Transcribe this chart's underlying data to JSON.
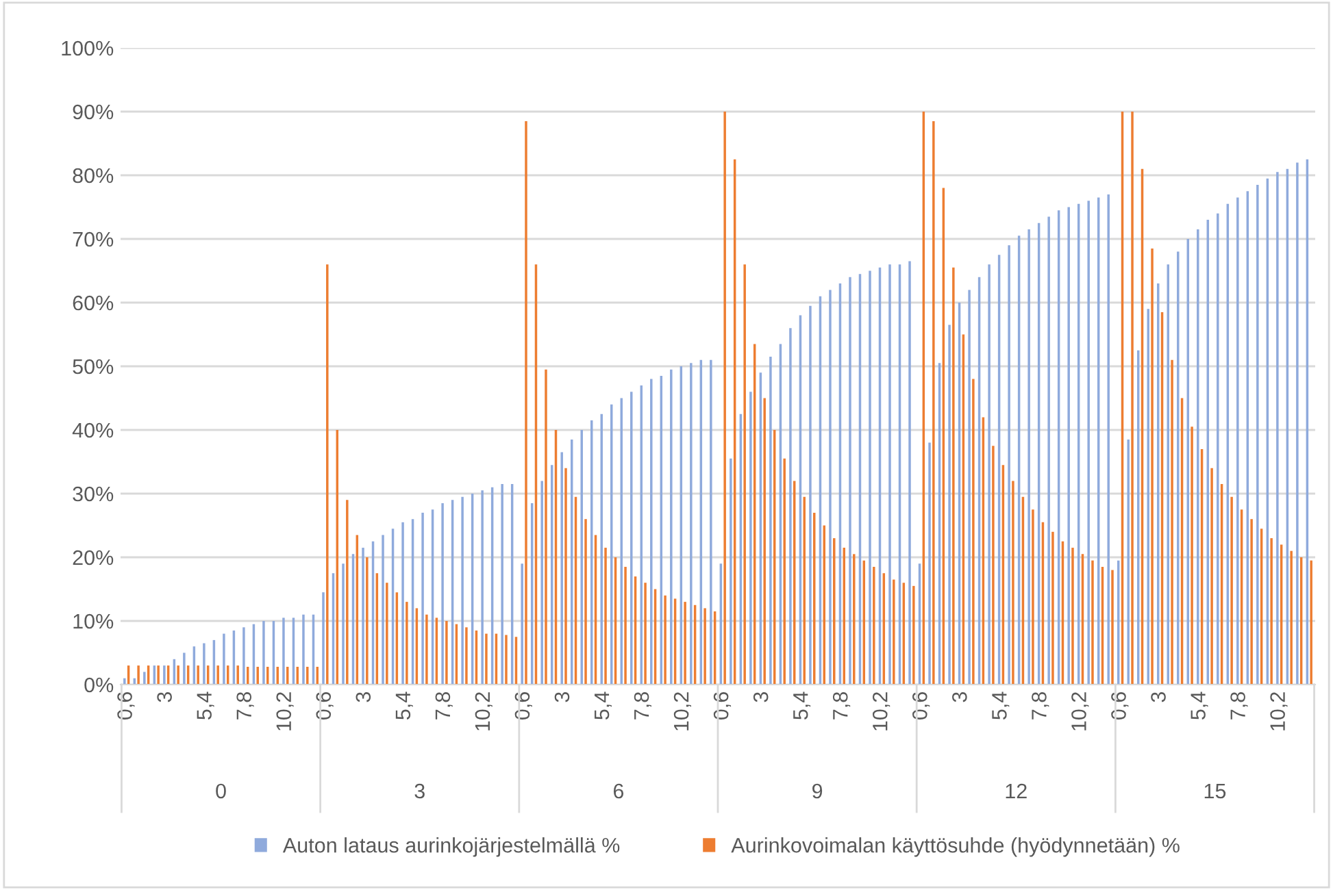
{
  "chart_data": {
    "type": "bar",
    "categories": [
      "0,6",
      null,
      null,
      null,
      "3",
      null,
      null,
      null,
      "5,4",
      null,
      null,
      null,
      "7,8",
      null,
      null,
      null,
      "10,2",
      null,
      null,
      null,
      "0,6",
      null,
      null,
      null,
      "3",
      null,
      null,
      null,
      "5,4",
      null,
      null,
      null,
      "7,8",
      null,
      null,
      null,
      "10,2",
      null,
      null,
      null,
      "0,6",
      null,
      null,
      null,
      "3",
      null,
      null,
      null,
      "5,4",
      null,
      null,
      null,
      "7,8",
      null,
      null,
      null,
      "10,2",
      null,
      null,
      null,
      "0,6",
      null,
      null,
      null,
      "3",
      null,
      null,
      null,
      "5,4",
      null,
      null,
      null,
      "7,8",
      null,
      null,
      null,
      "10,2",
      null,
      null,
      null,
      "0,6",
      null,
      null,
      null,
      "3",
      null,
      null,
      null,
      "5,4",
      null,
      null,
      null,
      "7,8",
      null,
      null,
      null,
      "10,2",
      null,
      null,
      null,
      "0,6",
      null,
      null,
      null,
      "3",
      null,
      null,
      null,
      "5,4",
      null,
      null,
      null,
      "7,8",
      null,
      null,
      null,
      "10,2",
      null,
      null,
      null
    ],
    "annotations": [
      "0",
      "3",
      "6",
      "9",
      "12",
      "15"
    ],
    "series": [
      {
        "name": "Auton lataus aurinkojärjestelmällä %",
        "color": "#8faadc",
        "values": [
          1,
          1,
          2,
          3,
          3,
          4,
          5,
          6,
          6.5,
          7,
          8,
          8.5,
          9,
          9.5,
          10,
          10,
          10.5,
          10.5,
          11,
          11,
          14.5,
          17.5,
          19,
          20.5,
          21.5,
          22.5,
          23.5,
          24.5,
          25.5,
          26,
          27,
          27.5,
          28.5,
          29,
          29.5,
          30,
          30.5,
          31,
          31.5,
          31.5,
          19,
          28.5,
          32,
          34.5,
          36.5,
          38.5,
          40,
          41.5,
          42.5,
          44,
          45,
          46,
          47,
          48,
          48.5,
          49.5,
          50,
          50.5,
          51,
          51,
          19,
          35.5,
          42.5,
          46,
          49,
          51.5,
          53.5,
          56,
          58,
          59.5,
          61,
          62,
          63,
          64,
          64.5,
          65,
          65.5,
          66,
          66,
          66.5,
          19,
          38,
          50.5,
          56.5,
          60,
          62,
          64,
          66,
          67.5,
          69,
          70.5,
          71.5,
          72.5,
          73.5,
          74.5,
          75,
          75.5,
          76,
          76.5,
          77,
          19.5,
          38.5,
          52.5,
          59,
          63,
          66,
          68,
          70,
          71.5,
          73,
          74,
          75.5,
          76.5,
          77.5,
          78.5,
          79.5,
          80.5,
          81,
          82,
          82.5
        ]
      },
      {
        "name": "Aurinkovoimalan käyttösuhde (hyödynnetään) %",
        "color": "#ed7d31",
        "values": [
          3,
          3,
          3,
          3,
          3,
          3,
          3,
          3,
          3,
          3,
          3,
          3,
          2.8,
          2.8,
          2.8,
          2.8,
          2.8,
          2.8,
          2.8,
          2.8,
          66,
          40,
          29,
          23.5,
          20,
          17.5,
          16,
          14.5,
          13,
          12,
          11,
          10.5,
          10,
          9.5,
          9,
          8.5,
          8,
          8,
          7.8,
          7.5,
          88.5,
          66,
          49.5,
          40,
          34,
          29.5,
          26,
          23.5,
          21.5,
          20,
          18.5,
          17,
          16,
          15,
          14,
          13.5,
          13,
          12.5,
          12,
          11.5,
          90,
          82.5,
          66,
          53.5,
          45,
          40,
          35.5,
          32,
          29.5,
          27,
          25,
          23,
          21.5,
          20.5,
          19.5,
          18.5,
          17.5,
          16.5,
          16,
          15.5,
          90,
          88.5,
          78,
          65.5,
          55,
          48,
          42,
          37.5,
          34.5,
          32,
          29.5,
          27.5,
          25.5,
          24,
          22.5,
          21.5,
          20.5,
          19.5,
          18.5,
          18,
          90,
          90,
          81,
          68.5,
          58.5,
          51,
          45,
          40.5,
          37,
          34,
          31.5,
          29.5,
          27.5,
          26,
          24.5,
          23,
          22,
          21,
          20,
          19.5
        ]
      }
    ],
    "ylim": [
      0,
      100
    ],
    "yticks": [
      {
        "value": 0,
        "label": "0%"
      },
      {
        "value": 10,
        "label": "10%"
      },
      {
        "value": 20,
        "label": "20%"
      },
      {
        "value": 30,
        "label": "30%"
      },
      {
        "value": 40,
        "label": "40%"
      },
      {
        "value": 50,
        "label": "50%"
      },
      {
        "value": 60,
        "label": "60%"
      },
      {
        "value": 70,
        "label": "70%"
      },
      {
        "value": 80,
        "label": "80%"
      },
      {
        "value": 90,
        "label": "90%"
      },
      {
        "value": 100,
        "label": "100%"
      }
    ],
    "grid": "y",
    "legend": "bottom"
  }
}
